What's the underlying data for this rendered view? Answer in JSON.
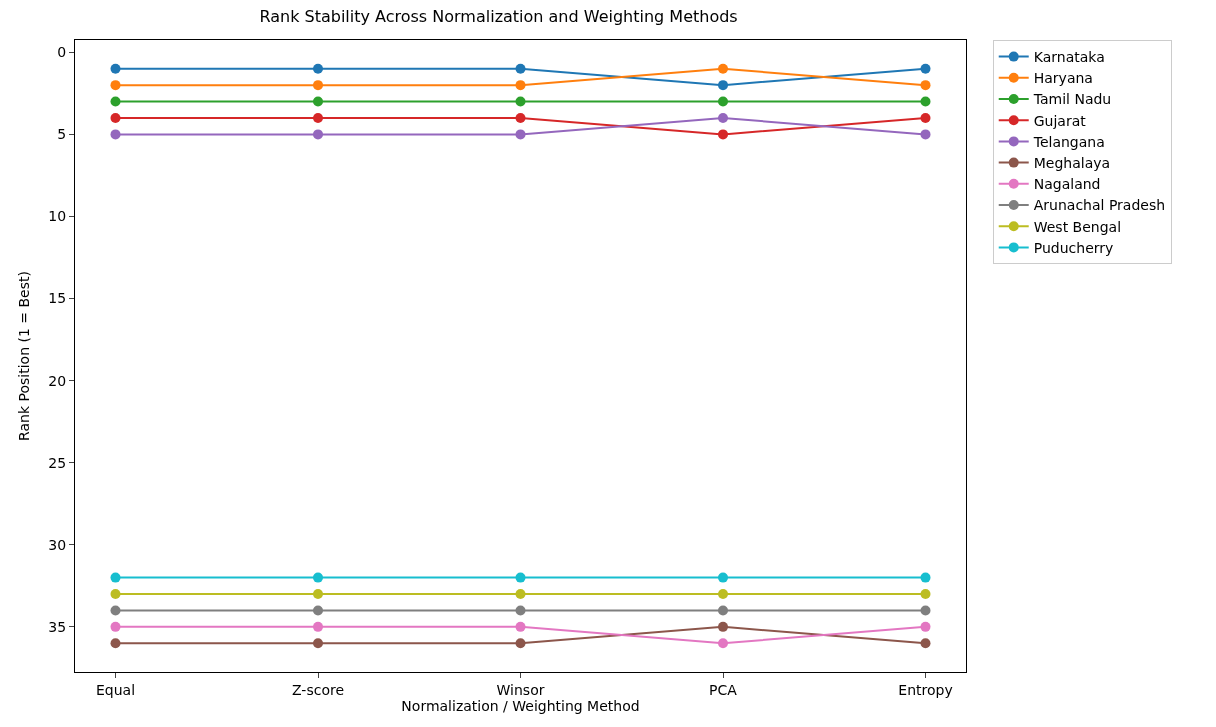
{
  "chart_data": {
    "type": "line",
    "title": "Rank Stability Across Normalization and Weighting Methods",
    "xlabel": "Normalization / Weighting Method",
    "ylabel": "Rank Position (1 = Best)",
    "categories": [
      "Equal",
      "Z-score",
      "Winsor",
      "PCA",
      "Entropy"
    ],
    "series": [
      {
        "name": "Karnataka",
        "color": "#1f77b4",
        "values": [
          1,
          1,
          1,
          2,
          1
        ]
      },
      {
        "name": "Haryana",
        "color": "#ff7f0e",
        "values": [
          2,
          2,
          2,
          1,
          2
        ]
      },
      {
        "name": "Tamil Nadu",
        "color": "#2ca02c",
        "values": [
          3,
          3,
          3,
          3,
          3
        ]
      },
      {
        "name": "Gujarat",
        "color": "#d62728",
        "values": [
          4,
          4,
          4,
          5,
          4
        ]
      },
      {
        "name": "Telangana",
        "color": "#9467bd",
        "values": [
          5,
          5,
          5,
          4,
          5
        ]
      },
      {
        "name": "Meghalaya",
        "color": "#8c564b",
        "values": [
          36,
          36,
          36,
          35,
          36
        ]
      },
      {
        "name": "Nagaland",
        "color": "#e377c2",
        "values": [
          35,
          35,
          35,
          36,
          35
        ]
      },
      {
        "name": "Arunachal Pradesh",
        "color": "#7f7f7f",
        "values": [
          34,
          34,
          34,
          34,
          34
        ]
      },
      {
        "name": "West Bengal",
        "color": "#bcbd22",
        "values": [
          33,
          33,
          33,
          33,
          33
        ]
      },
      {
        "name": "Puducherry",
        "color": "#17becf",
        "values": [
          32,
          32,
          32,
          32,
          32
        ]
      }
    ],
    "ylim": [
      37.75,
      -0.75
    ],
    "yticks": [
      0,
      5,
      10,
      15,
      20,
      25,
      30,
      35
    ],
    "legend": "top right",
    "marker": "circle",
    "line_style": "solid"
  }
}
